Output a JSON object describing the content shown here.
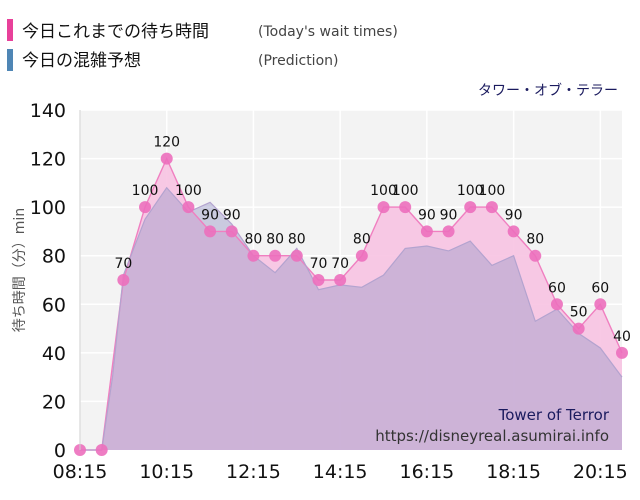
{
  "legend": {
    "today_label": "今日これまでの待ち時間",
    "today_sub": "(Today's wait times)",
    "prediction_label": "今日の混雑予想",
    "prediction_sub": "(Prediction)",
    "today_color": "#e8409a",
    "prediction_color": "#4f86b5"
  },
  "attraction_name": "タワー・オブ・テラー",
  "watermark": {
    "name": "Tower of Terror",
    "url": "https://disneyreal.asumirai.info"
  },
  "chart_data": {
    "type": "area",
    "ylabel": "待ち時間（分）min",
    "ylim": [
      0,
      140
    ],
    "yticks": [
      0,
      20,
      40,
      60,
      80,
      100,
      120,
      140
    ],
    "xlim": [
      "08:15",
      "20:45"
    ],
    "xticks": [
      "08:15",
      "10:15",
      "12:15",
      "14:15",
      "16:15",
      "18:15",
      "20:15"
    ],
    "grid": true,
    "series": [
      {
        "name": "今日これまでの待ち時間",
        "color": "#e8409a",
        "x": [
          "08:15",
          "08:45",
          "09:15",
          "09:45",
          "10:15",
          "10:45",
          "11:15",
          "11:45",
          "12:15",
          "12:45",
          "13:15",
          "13:45",
          "14:15",
          "14:45",
          "15:15",
          "15:45",
          "16:15",
          "16:45",
          "17:15",
          "17:45",
          "18:15",
          "18:45",
          "19:15",
          "19:45",
          "20:15",
          "20:45"
        ],
        "values": [
          0,
          0,
          70,
          100,
          120,
          100,
          90,
          90,
          80,
          80,
          80,
          70,
          70,
          80,
          100,
          100,
          90,
          90,
          100,
          100,
          90,
          80,
          60,
          50,
          60,
          40
        ],
        "labels": [
          null,
          null,
          "70",
          "100",
          "120",
          "100",
          "90",
          "90",
          "80",
          "80",
          "80",
          "70",
          "70",
          "80",
          "100",
          "100",
          "90",
          "90",
          "100",
          "100",
          "90",
          "80",
          "60",
          "50",
          "60",
          "40"
        ]
      },
      {
        "name": "今日の混雑予想",
        "color": "#4f86b5",
        "x": [
          "08:15",
          "08:45",
          "09:00",
          "09:15",
          "09:45",
          "10:15",
          "10:45",
          "11:15",
          "11:45",
          "12:15",
          "12:45",
          "13:15",
          "13:45",
          "14:15",
          "14:45",
          "15:15",
          "15:45",
          "16:15",
          "16:45",
          "17:15",
          "17:45",
          "18:15",
          "18:45",
          "19:15",
          "19:45",
          "20:15",
          "20:45"
        ],
        "values": [
          0,
          0,
          30,
          72,
          95,
          108,
          98,
          102,
          93,
          80,
          73,
          83,
          66,
          68,
          67,
          72,
          83,
          84,
          82,
          86,
          76,
          80,
          53,
          58,
          48,
          42,
          30
        ]
      }
    ]
  }
}
